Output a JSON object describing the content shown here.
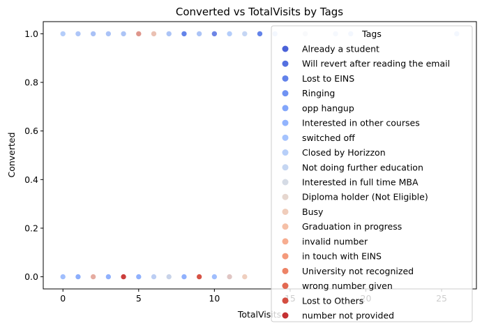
{
  "chart_data": {
    "type": "scatter",
    "title": "Converted vs TotalVisits by Tags",
    "xlabel": "TotalVisits",
    "ylabel": "Converted",
    "xlim": [
      -1.3,
      27.3
    ],
    "ylim": [
      -0.05,
      1.05
    ],
    "xticks": [
      0,
      5,
      10,
      15,
      20,
      25
    ],
    "yticks": [
      0.0,
      0.2,
      0.4,
      0.6,
      0.8,
      1.0
    ],
    "xtick_labels": [
      "0",
      "5",
      "10",
      "15",
      "20",
      "25"
    ],
    "ytick_labels": [
      "0.0",
      "0.2",
      "0.4",
      "0.6",
      "0.8",
      "1.0"
    ],
    "grid": false,
    "legend": {
      "title": "Tags",
      "placement": "upper-right"
    },
    "series": [
      {
        "name": "Already a student",
        "color": "#4a62d8",
        "points": [
          [
            1,
            0
          ],
          [
            2,
            1
          ],
          [
            5,
            1
          ]
        ]
      },
      {
        "name": "Will revert after reading the email",
        "color": "#5470e0",
        "points": [
          [
            2,
            1
          ],
          [
            3,
            1
          ],
          [
            4,
            1
          ],
          [
            5,
            1
          ],
          [
            7,
            1
          ],
          [
            8,
            1
          ],
          [
            9,
            1
          ],
          [
            10,
            1
          ],
          [
            13,
            1
          ]
        ]
      },
      {
        "name": "Lost to EINS",
        "color": "#6282ea",
        "points": [
          [
            1,
            1
          ],
          [
            3,
            1
          ],
          [
            5,
            1
          ],
          [
            6,
            1
          ],
          [
            8,
            1
          ],
          [
            13,
            1
          ]
        ]
      },
      {
        "name": "Ringing",
        "color": "#7093f3",
        "points": [
          [
            0,
            0
          ],
          [
            1,
            0
          ],
          [
            2,
            0
          ],
          [
            3,
            0
          ],
          [
            4,
            0
          ],
          [
            5,
            0
          ],
          [
            6,
            0
          ],
          [
            7,
            0
          ],
          [
            8,
            0
          ],
          [
            9,
            0
          ],
          [
            10,
            0
          ],
          [
            11,
            0
          ]
        ]
      },
      {
        "name": "opp hangup",
        "color": "#82a6fb",
        "points": [
          [
            2,
            0
          ],
          [
            7,
            0
          ]
        ]
      },
      {
        "name": "Interested in other courses",
        "color": "#92b4fe",
        "points": [
          [
            0,
            1
          ],
          [
            1,
            0
          ],
          [
            3,
            0
          ],
          [
            5,
            0
          ],
          [
            8,
            0
          ],
          [
            11,
            1
          ]
        ]
      },
      {
        "name": "switched off",
        "color": "#a5c3fe",
        "points": [
          [
            0,
            0
          ],
          [
            4,
            0
          ],
          [
            10,
            0
          ]
        ]
      },
      {
        "name": "Closed by Horizzon",
        "color": "#b7cff9",
        "points": [
          [
            0,
            1
          ],
          [
            1,
            1
          ],
          [
            2,
            1
          ],
          [
            3,
            1
          ],
          [
            4,
            1
          ],
          [
            6,
            1
          ],
          [
            7,
            1
          ],
          [
            9,
            1
          ],
          [
            11,
            1
          ],
          [
            12,
            1
          ],
          [
            14,
            1
          ],
          [
            19,
            1
          ],
          [
            26,
            1
          ]
        ]
      },
      {
        "name": "Not doing further education",
        "color": "#c5d6f2",
        "points": [
          [
            6,
            0
          ],
          [
            12,
            1
          ],
          [
            18,
            1
          ]
        ]
      },
      {
        "name": "Interested  in full time MBA",
        "color": "#d5dbe5",
        "points": [
          [
            7,
            0
          ],
          [
            16,
            1
          ]
        ]
      },
      {
        "name": "Diploma holder (Not Eligible)",
        "color": "#e6d7cf",
        "points": [
          [
            4,
            0
          ],
          [
            12,
            0
          ]
        ]
      },
      {
        "name": "Busy",
        "color": "#f0cdbb",
        "points": [
          [
            9,
            0
          ],
          [
            11,
            0
          ],
          [
            12,
            0
          ]
        ]
      },
      {
        "name": "Graduation in progress",
        "color": "#f5c0a7",
        "points": [
          [
            4,
            0
          ],
          [
            6,
            1
          ]
        ]
      },
      {
        "name": "invalid number",
        "color": "#f7ad90",
        "points": [
          [
            2,
            0
          ],
          [
            9,
            0
          ]
        ]
      },
      {
        "name": "in touch with EINS",
        "color": "#f49a7b",
        "points": [
          [
            5,
            1
          ]
        ]
      },
      {
        "name": "University not recognized",
        "color": "#ed8366",
        "points": [
          [
            4,
            0
          ]
        ]
      },
      {
        "name": "wrong number given",
        "color": "#e26952",
        "points": [
          [
            9,
            0
          ]
        ]
      },
      {
        "name": "Lost to Others",
        "color": "#d44e41",
        "points": [
          [
            9,
            0
          ]
        ]
      },
      {
        "name": "number not provided",
        "color": "#c43032",
        "points": [
          [
            4,
            0
          ]
        ]
      }
    ]
  }
}
